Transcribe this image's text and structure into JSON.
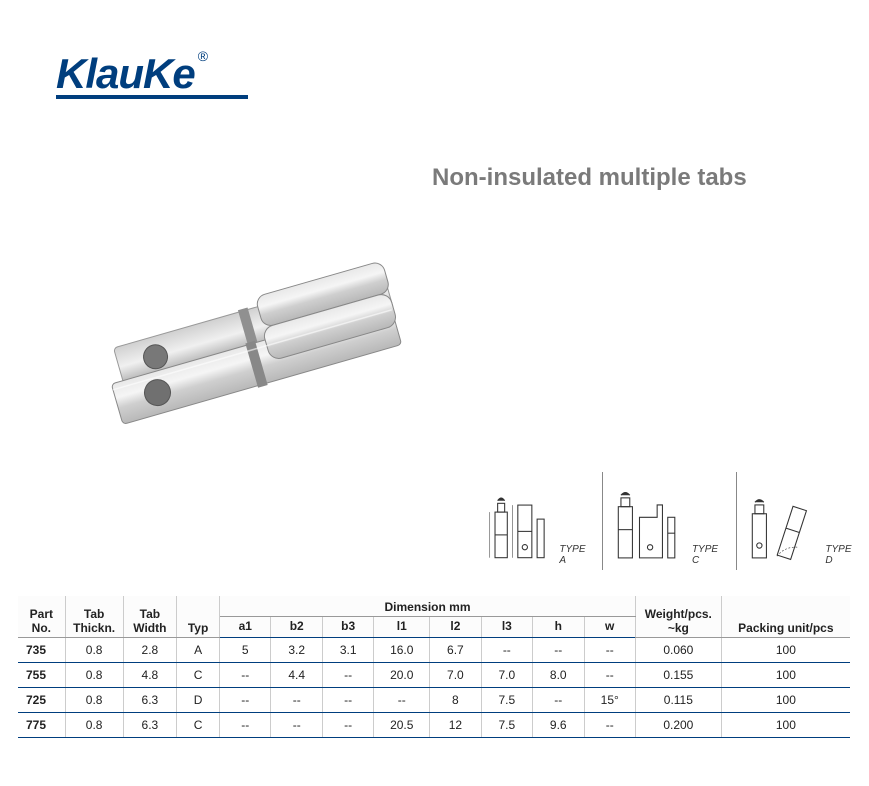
{
  "brand": {
    "name": "KlauKe",
    "reg": "®",
    "color": "#003e7e"
  },
  "title": "Non-insulated multiple tabs",
  "diagram_labels": {
    "a": "TYPE A",
    "c": "TYPE C",
    "d": "TYPE D"
  },
  "table": {
    "headers": {
      "part_no": "Part\nNo.",
      "tab_thickn": "Tab\nThickn.",
      "tab_width": "Tab\nWidth",
      "typ": "Typ",
      "dim_group": "Dimension mm",
      "a1": "a1",
      "b2": "b2",
      "b3": "b3",
      "l1": "l1",
      "l2": "l2",
      "l3": "l3",
      "h": "h",
      "w": "w",
      "weight": "Weight/pcs.\n~kg",
      "packing": "Packing unit/pcs"
    },
    "rows": [
      {
        "part": "735",
        "thk": "0.8",
        "wid": "2.8",
        "typ": "A",
        "a1": "5",
        "b2": "3.2",
        "b3": "3.1",
        "l1": "16.0",
        "l2": "6.7",
        "l3": "--",
        "h": "--",
        "w": "--",
        "wt": "0.060",
        "pk": "100"
      },
      {
        "part": "755",
        "thk": "0.8",
        "wid": "4.8",
        "typ": "C",
        "a1": "--",
        "b2": "4.4",
        "b3": "--",
        "l1": "20.0",
        "l2": "7.0",
        "l3": "7.0",
        "h": "8.0",
        "w": "--",
        "wt": "0.155",
        "pk": "100"
      },
      {
        "part": "725",
        "thk": "0.8",
        "wid": "6.3",
        "typ": "D",
        "a1": "--",
        "b2": "--",
        "b3": "--",
        "l1": "--",
        "l2": "8",
        "l3": "7.5",
        "h": "--",
        "w": "15°",
        "wt": "0.115",
        "pk": "100"
      },
      {
        "part": "775",
        "thk": "0.8",
        "wid": "6.3",
        "typ": "C",
        "a1": "--",
        "b2": "--",
        "b3": "--",
        "l1": "20.5",
        "l2": "12",
        "l3": "7.5",
        "h": "9.6",
        "w": "--",
        "wt": "0.200",
        "pk": "100"
      }
    ]
  },
  "colors": {
    "border": "#003e7e",
    "sep": "#cccccc",
    "text": "#222222",
    "title": "#7a7a7a"
  }
}
